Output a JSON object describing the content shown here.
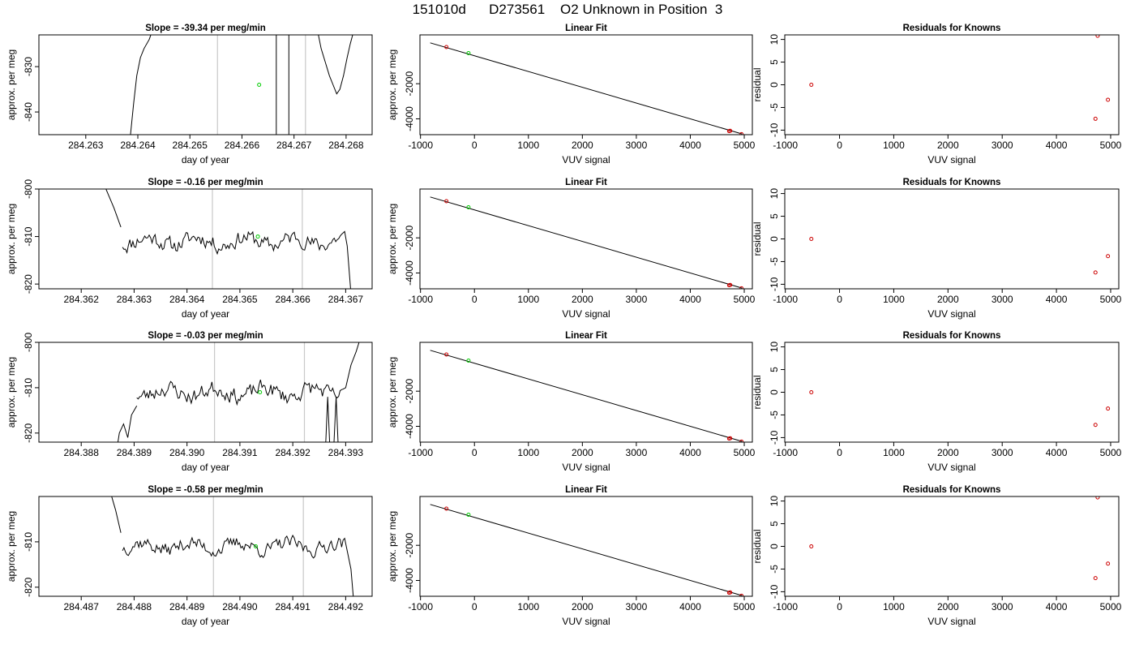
{
  "page_title": "151010d      D273561    O2 Unknown in Position  3",
  "colors": {
    "trace": "#000000",
    "unknown_point": "#00cc00",
    "known_point": "#cc0000",
    "marker_line": "#c8c8c8",
    "fit_line": "#000000"
  },
  "chart_data": [
    {
      "id": "r1-slope",
      "type": "line",
      "title": "Slope =  -39.34  per meg/min",
      "xlabel": "day of year",
      "ylabel": "approx. per meg",
      "xlim": [
        284.2621,
        284.2685
      ],
      "ylim": [
        -845,
        -823
      ],
      "xticks": [
        284.263,
        284.264,
        284.265,
        284.266,
        284.267,
        284.268
      ],
      "xtick_labels": [
        "284.263",
        "284.264",
        "284.265",
        "284.266",
        "284.267",
        "284.268"
      ],
      "yticks": [
        -840,
        -830
      ],
      "ytick_labels": [
        "-840",
        "-830"
      ],
      "vlines": [
        284.26553,
        284.26722
      ],
      "trace_segments": [
        [
          [
            284.26385,
            -846
          ],
          [
            284.26392,
            -838
          ],
          [
            284.26398,
            -832
          ],
          [
            284.26405,
            -828
          ],
          [
            284.26412,
            -826
          ],
          [
            284.26422,
            -824
          ],
          [
            284.26428,
            -822
          ]
        ],
        [
          [
            284.26666,
            -822
          ],
          [
            284.26666,
            -846
          ]
        ],
        [
          [
            284.2669,
            -846
          ],
          [
            284.2669,
            -822
          ]
        ],
        [
          [
            284.26745,
            -822
          ],
          [
            284.26752,
            -826
          ],
          [
            284.2676,
            -829
          ],
          [
            284.26768,
            -832
          ],
          [
            284.26775,
            -834
          ],
          [
            284.26782,
            -836
          ],
          [
            284.26788,
            -835
          ],
          [
            284.26795,
            -832
          ],
          [
            284.26802,
            -828
          ],
          [
            284.26808,
            -825
          ],
          [
            284.26815,
            -822
          ]
        ]
      ],
      "unknown_points": [
        [
          284.26633,
          -834
        ]
      ]
    },
    {
      "id": "r1-fit",
      "type": "scatter",
      "title": "Linear Fit",
      "xlabel": "VUV signal",
      "ylabel": "approx. per meg",
      "xlim": [
        -1010,
        5150
      ],
      "ylim": [
        -4900,
        780
      ],
      "xticks": [
        -1000,
        0,
        1000,
        2000,
        3000,
        4000,
        5000
      ],
      "xtick_labels": [
        "-1000",
        "0",
        "1000",
        "2000",
        "3000",
        "4000",
        "5000"
      ],
      "yticks": [
        -4000,
        -2000
      ],
      "ytick_labels": [
        "-4000",
        "-2000"
      ],
      "fit_line": [
        [
          -820,
          327
        ],
        [
          4960,
          -4860
        ]
      ],
      "known_points": [
        [
          -520,
          88
        ],
        [
          4720,
          -4700
        ],
        [
          4740,
          -4680
        ],
        [
          4950,
          -4870
        ]
      ],
      "unknown_points": [
        [
          -110,
          -260
        ]
      ]
    },
    {
      "id": "r1-resid",
      "type": "scatter",
      "title": "Residuals for Knowns",
      "xlabel": "VUV signal",
      "ylabel": "residual",
      "xlim": [
        -1010,
        5150
      ],
      "ylim": [
        -11,
        11
      ],
      "xticks": [
        -1000,
        0,
        1000,
        2000,
        3000,
        4000,
        5000
      ],
      "xtick_labels": [
        "-1000",
        "0",
        "1000",
        "2000",
        "3000",
        "4000",
        "5000"
      ],
      "yticks": [
        -10,
        -5,
        0,
        5,
        10
      ],
      "ytick_labels": [
        "-10",
        "-5",
        "0",
        "5",
        "10"
      ],
      "known_points": [
        [
          -520,
          0
        ],
        [
          4720,
          -7.5
        ],
        [
          4760,
          10.8
        ],
        [
          4950,
          -3.3
        ]
      ]
    },
    {
      "id": "r2-slope",
      "type": "line",
      "title": "Slope =  -0.16  per meg/min",
      "xlabel": "day of year",
      "ylabel": "approx. per meg",
      "xlim": [
        284.3612,
        284.3675
      ],
      "ylim": [
        -821,
        -800
      ],
      "xticks": [
        284.362,
        284.363,
        284.364,
        284.365,
        284.366,
        284.367
      ],
      "xtick_labels": [
        "284.362",
        "284.363",
        "284.364",
        "284.365",
        "284.366",
        "284.367"
      ],
      "yticks": [
        -820,
        -810,
        -800
      ],
      "ytick_labels": [
        "-820",
        "-810",
        "-800"
      ],
      "vlines": [
        284.36448,
        284.36618
      ],
      "trace_segments": [
        [
          [
            284.36243,
            -799
          ],
          [
            284.36262,
            -804
          ],
          [
            284.36275,
            -808
          ]
        ]
      ],
      "noise": {
        "start": 284.36278,
        "end": 284.36698,
        "center": -811,
        "amp": 2.6,
        "seed": 11,
        "steps": 150
      },
      "trace_tail": [
        [
          284.36703,
          -812
        ],
        [
          284.3671,
          -822
        ]
      ],
      "unknown_points": [
        [
          284.36534,
          -810
        ]
      ]
    },
    {
      "id": "r2-fit",
      "type": "scatter",
      "title": "Linear Fit",
      "xlabel": "VUV signal",
      "ylabel": "approx. per meg",
      "xlim": [
        -1010,
        5150
      ],
      "ylim": [
        -4900,
        780
      ],
      "xticks": [
        -1000,
        0,
        1000,
        2000,
        3000,
        4000,
        5000
      ],
      "xtick_labels": [
        "-1000",
        "0",
        "1000",
        "2000",
        "3000",
        "4000",
        "5000"
      ],
      "yticks": [
        -4000,
        -2000
      ],
      "ytick_labels": [
        "-4000",
        "-2000"
      ],
      "fit_line": [
        [
          -820,
          327
        ],
        [
          4960,
          -4860
        ]
      ],
      "known_points": [
        [
          -520,
          88
        ],
        [
          4720,
          -4700
        ],
        [
          4740,
          -4680
        ],
        [
          4950,
          -4870
        ]
      ],
      "unknown_points": [
        [
          -110,
          -260
        ]
      ]
    },
    {
      "id": "r2-resid",
      "type": "scatter",
      "title": "Residuals for Knowns",
      "xlabel": "VUV signal",
      "ylabel": "residual",
      "xlim": [
        -1010,
        5150
      ],
      "ylim": [
        -11,
        11
      ],
      "xticks": [
        -1000,
        0,
        1000,
        2000,
        3000,
        4000,
        5000
      ],
      "xtick_labels": [
        "-1000",
        "0",
        "1000",
        "2000",
        "3000",
        "4000",
        "5000"
      ],
      "yticks": [
        -10,
        -5,
        0,
        5,
        10
      ],
      "ytick_labels": [
        "-10",
        "-5",
        "0",
        "5",
        "10"
      ],
      "known_points": [
        [
          -520,
          0
        ],
        [
          4720,
          -7.4
        ],
        [
          4950,
          -3.8
        ]
      ]
    },
    {
      "id": "r3-slope",
      "type": "line",
      "title": "Slope =  -0.03  per meg/min",
      "xlabel": "day of year",
      "ylabel": "approx. per meg",
      "xlim": [
        284.3872,
        284.3935
      ],
      "ylim": [
        -822,
        -800
      ],
      "xticks": [
        284.388,
        284.389,
        284.39,
        284.391,
        284.392,
        284.393
      ],
      "xtick_labels": [
        "284.388",
        "284.389",
        "284.390",
        "284.391",
        "284.392",
        "284.393"
      ],
      "yticks": [
        -820,
        -810,
        -800
      ],
      "ytick_labels": [
        "-820",
        "-810",
        "-800"
      ],
      "vlines": [
        284.39052,
        284.39222
      ],
      "trace_segments": [
        [
          [
            284.38868,
            -823
          ],
          [
            284.38872,
            -820
          ],
          [
            284.3888,
            -818
          ],
          [
            284.38888,
            -821
          ],
          [
            284.38895,
            -816
          ],
          [
            284.38905,
            -814
          ]
        ],
        [
          [
            284.39262,
            -823
          ],
          [
            284.39266,
            -812
          ],
          [
            284.3927,
            -823
          ]
        ],
        [
          [
            284.39278,
            -822
          ],
          [
            284.39282,
            -812
          ],
          [
            284.39286,
            -823
          ]
        ]
      ],
      "noise": {
        "start": 284.38905,
        "end": 284.39295,
        "center": -811,
        "amp": 2.8,
        "seed": 23,
        "steps": 140
      },
      "trace_tail": [
        [
          284.393,
          -810
        ],
        [
          284.3931,
          -805
        ],
        [
          284.3932,
          -802
        ],
        [
          284.39328,
          -799
        ]
      ],
      "unknown_points": [
        [
          284.39138,
          -811
        ]
      ]
    },
    {
      "id": "r3-fit",
      "type": "scatter",
      "title": "Linear Fit",
      "xlabel": "VUV signal",
      "ylabel": "approx. per meg",
      "xlim": [
        -1010,
        5150
      ],
      "ylim": [
        -4900,
        780
      ],
      "xticks": [
        -1000,
        0,
        1000,
        2000,
        3000,
        4000,
        5000
      ],
      "xtick_labels": [
        "-1000",
        "0",
        "1000",
        "2000",
        "3000",
        "4000",
        "5000"
      ],
      "yticks": [
        -4000,
        -2000
      ],
      "ytick_labels": [
        "-4000",
        "-2000"
      ],
      "fit_line": [
        [
          -820,
          327
        ],
        [
          4960,
          -4860
        ]
      ],
      "known_points": [
        [
          -520,
          88
        ],
        [
          4720,
          -4700
        ],
        [
          4740,
          -4680
        ],
        [
          4950,
          -4870
        ]
      ],
      "unknown_points": [
        [
          -110,
          -260
        ]
      ]
    },
    {
      "id": "r3-resid",
      "type": "scatter",
      "title": "Residuals for Knowns",
      "xlabel": "VUV signal",
      "ylabel": "residual",
      "xlim": [
        -1010,
        5150
      ],
      "ylim": [
        -11,
        11
      ],
      "xticks": [
        -1000,
        0,
        1000,
        2000,
        3000,
        4000,
        5000
      ],
      "xtick_labels": [
        "-1000",
        "0",
        "1000",
        "2000",
        "3000",
        "4000",
        "5000"
      ],
      "yticks": [
        -10,
        -5,
        0,
        5,
        10
      ],
      "ytick_labels": [
        "-10",
        "-5",
        "0",
        "5",
        "10"
      ],
      "known_points": [
        [
          -520,
          0
        ],
        [
          4720,
          -7.2
        ],
        [
          4950,
          -3.6
        ]
      ]
    },
    {
      "id": "r4-slope",
      "type": "line",
      "title": "Slope =  -0.58  per meg/min",
      "xlabel": "day of year",
      "ylabel": "approx. per meg",
      "xlim": [
        284.4862,
        284.4925
      ],
      "ylim": [
        -822,
        -800
      ],
      "xticks": [
        284.487,
        284.488,
        284.489,
        284.49,
        284.491,
        284.492
      ],
      "xtick_labels": [
        "284.487",
        "284.488",
        "284.489",
        "284.490",
        "284.491",
        "284.492"
      ],
      "yticks": [
        -820,
        -810
      ],
      "ytick_labels": [
        "-820",
        "-810"
      ],
      "vlines": [
        284.4895,
        284.4912
      ],
      "trace_segments": [
        [
          [
            284.48755,
            -799
          ],
          [
            284.48765,
            -803
          ],
          [
            284.48775,
            -808
          ]
        ]
      ],
      "noise": {
        "start": 284.48778,
        "end": 284.49198,
        "center": -811,
        "amp": 2.4,
        "seed": 37,
        "steps": 150
      },
      "trace_tail": [
        [
          284.49203,
          -812
        ],
        [
          284.4921,
          -816
        ],
        [
          284.49215,
          -823
        ]
      ],
      "unknown_points": [
        [
          284.4903,
          -811
        ]
      ]
    },
    {
      "id": "r4-fit",
      "type": "scatter",
      "title": "Linear Fit",
      "xlabel": "VUV signal",
      "ylabel": "approx. per meg",
      "xlim": [
        -1010,
        5150
      ],
      "ylim": [
        -4900,
        780
      ],
      "xticks": [
        -1000,
        0,
        1000,
        2000,
        3000,
        4000,
        5000
      ],
      "xtick_labels": [
        "-1000",
        "0",
        "1000",
        "2000",
        "3000",
        "4000",
        "5000"
      ],
      "yticks": [
        -4000,
        -2000
      ],
      "ytick_labels": [
        "-4000",
        "-2000"
      ],
      "fit_line": [
        [
          -820,
          327
        ],
        [
          4960,
          -4860
        ]
      ],
      "known_points": [
        [
          -520,
          88
        ],
        [
          4720,
          -4700
        ],
        [
          4740,
          -4680
        ],
        [
          4950,
          -4870
        ]
      ],
      "unknown_points": [
        [
          -110,
          -260
        ]
      ]
    },
    {
      "id": "r4-resid",
      "type": "scatter",
      "title": "Residuals for Knowns",
      "xlabel": "VUV signal",
      "ylabel": "residual",
      "xlim": [
        -1010,
        5150
      ],
      "ylim": [
        -11,
        11
      ],
      "xticks": [
        -1000,
        0,
        1000,
        2000,
        3000,
        4000,
        5000
      ],
      "xtick_labels": [
        "-1000",
        "0",
        "1000",
        "2000",
        "3000",
        "4000",
        "5000"
      ],
      "yticks": [
        -10,
        -5,
        0,
        5,
        10
      ],
      "ytick_labels": [
        "-10",
        "-5",
        "0",
        "5",
        "10"
      ],
      "known_points": [
        [
          -520,
          0
        ],
        [
          4720,
          -7.0
        ],
        [
          4760,
          10.8
        ],
        [
          4950,
          -3.8
        ]
      ]
    }
  ]
}
